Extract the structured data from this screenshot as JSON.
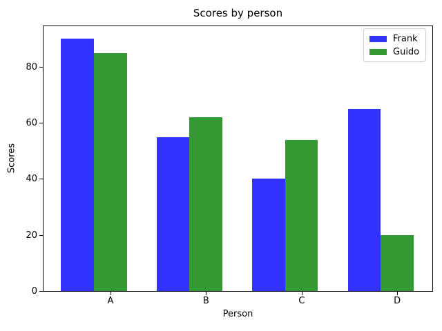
{
  "chart_data": {
    "type": "bar",
    "title": "Scores by person",
    "xlabel": "Person",
    "ylabel": "Scores",
    "categories": [
      "A",
      "B",
      "C",
      "D"
    ],
    "series": [
      {
        "name": "Frank",
        "color": "#3333ff",
        "values": [
          90,
          55,
          40,
          65
        ]
      },
      {
        "name": "Guido",
        "color": "#339933",
        "values": [
          85,
          62,
          54,
          20
        ]
      }
    ],
    "yticks": [
      0,
      20,
      40,
      60,
      80
    ],
    "ylim": [
      0,
      94.5
    ],
    "grid": false,
    "legend_position": "upper right",
    "bar_width_frac": 0.35
  }
}
